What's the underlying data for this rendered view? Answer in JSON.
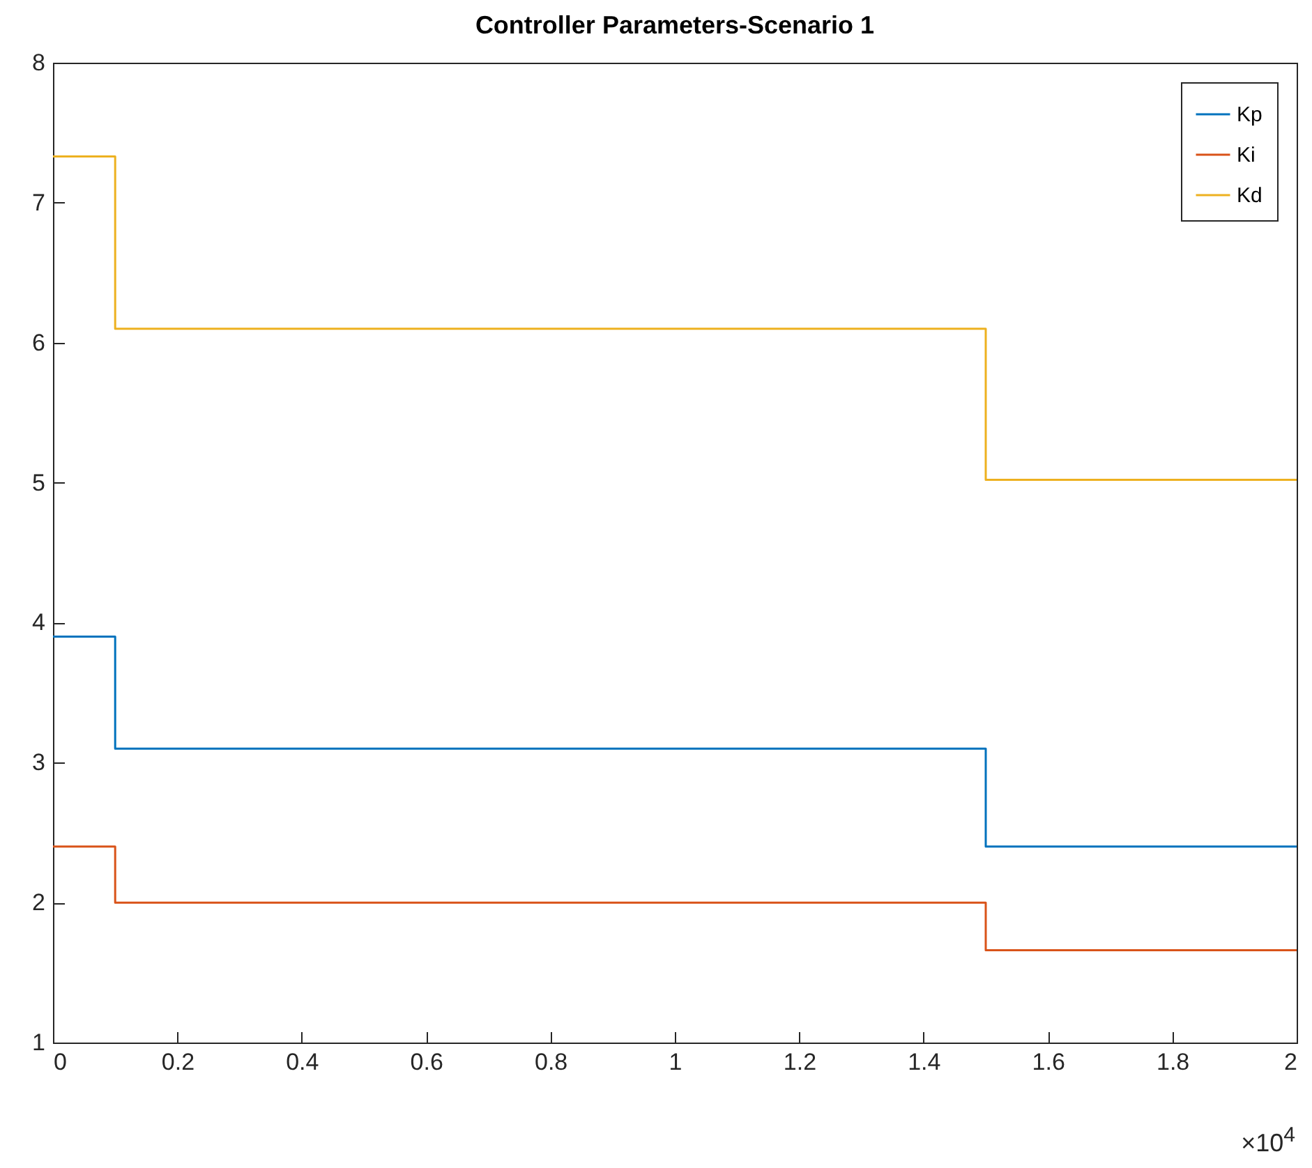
{
  "chart_data": {
    "type": "step",
    "title": "Controller Parameters-Scenario 1",
    "x": [
      0,
      0.1,
      1.5,
      2
    ],
    "series": [
      {
        "name": "Kp",
        "color": "#0072bd",
        "values": [
          3.9,
          3.1,
          2.4,
          2.4
        ]
      },
      {
        "name": "Ki",
        "color": "#d95319",
        "values": [
          2.4,
          2.0,
          1.66,
          1.66
        ]
      },
      {
        "name": "Kd",
        "color": "#edb120",
        "values": [
          7.33,
          6.1,
          5.02,
          5.02
        ]
      }
    ],
    "xlim": [
      0,
      2
    ],
    "xticks": [
      0,
      0.2,
      0.4,
      0.6,
      0.8,
      1,
      1.2,
      1.4,
      1.6,
      1.8,
      2
    ],
    "ylim": [
      1,
      8
    ],
    "yticks": [
      1,
      2,
      3,
      4,
      5,
      6,
      7,
      8
    ],
    "annotations": [
      "×10$^{4}$"
    ],
    "legend": "top right",
    "grid": false
  }
}
